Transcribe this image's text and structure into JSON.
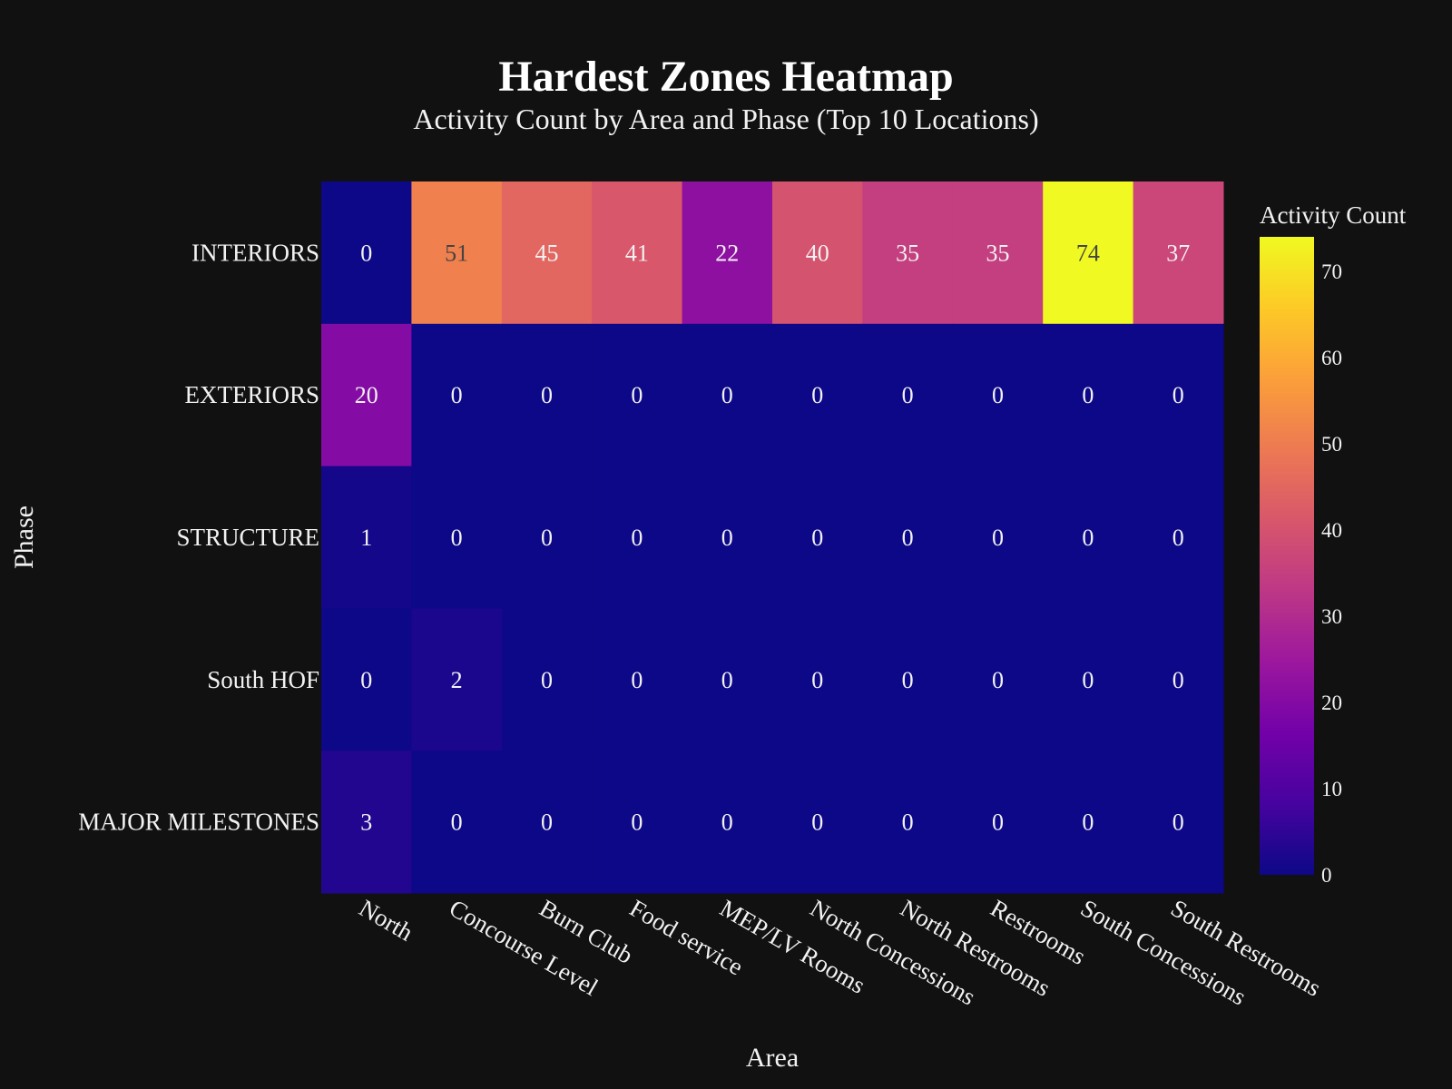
{
  "chart_data": {
    "type": "heatmap",
    "title": "Hardest Zones Heatmap",
    "subtitle": "Activity Count by Area and Phase (Top 10 Locations)",
    "xlabel": "Area",
    "ylabel": "Phase",
    "x_categories": [
      "North",
      "Concourse Level",
      "Burn Club",
      "Food service",
      "MEP/LV Rooms",
      "North Concessions",
      "North Restrooms",
      "Restrooms",
      "South Concessions",
      "South Restrooms"
    ],
    "y_categories": [
      "INTERIORS",
      "EXTERIORS",
      "STRUCTURE",
      "South HOF",
      "MAJOR MILESTONES"
    ],
    "values": [
      [
        0,
        51,
        45,
        41,
        22,
        40,
        35,
        35,
        74,
        37
      ],
      [
        20,
        0,
        0,
        0,
        0,
        0,
        0,
        0,
        0,
        0
      ],
      [
        1,
        0,
        0,
        0,
        0,
        0,
        0,
        0,
        0,
        0
      ],
      [
        0,
        2,
        0,
        0,
        0,
        0,
        0,
        0,
        0,
        0
      ],
      [
        3,
        0,
        0,
        0,
        0,
        0,
        0,
        0,
        0,
        0
      ]
    ],
    "colorbar": {
      "title": "Activity Count",
      "range": [
        0,
        74
      ],
      "ticks": [
        0,
        10,
        20,
        30,
        40,
        50,
        60,
        70
      ]
    },
    "colorscale": [
      "#0d0887",
      "#46039f",
      "#7201a8",
      "#9c179e",
      "#bd3786",
      "#d8576b",
      "#ed7953",
      "#fb9f3a",
      "#fdca26",
      "#f0f921"
    ],
    "background_color": "#111111",
    "text_color": "#f2f2f2",
    "grid": false
  }
}
